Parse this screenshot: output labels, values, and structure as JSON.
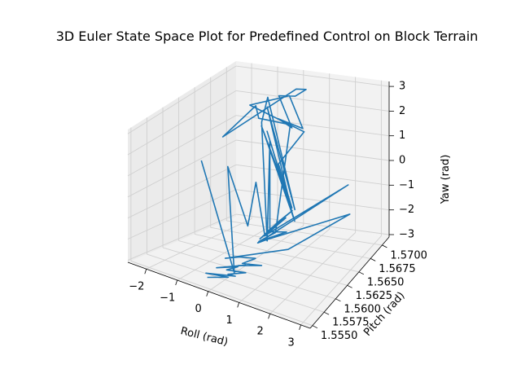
{
  "chart_data": {
    "type": "line",
    "projection": "3d",
    "title": "3D Euler State Space Plot for Predefined Control on Block Terrain",
    "xlabel": "Roll (rad)",
    "ylabel": "Pitch (rad)",
    "zlabel": "Yaw (rad)",
    "xlim": [
      -2.6,
      3.3
    ],
    "ylim": [
      1.5545,
      1.5715
    ],
    "zlim": [
      -3.1,
      3.2
    ],
    "xticks": [
      {
        "value": -2,
        "label": "−2"
      },
      {
        "value": -1,
        "label": "−1"
      },
      {
        "value": 0,
        "label": "0"
      },
      {
        "value": 1,
        "label": "1"
      },
      {
        "value": 2,
        "label": "2"
      },
      {
        "value": 3,
        "label": "3"
      }
    ],
    "yticks": [
      {
        "value": 1.555,
        "label": "1.5550"
      },
      {
        "value": 1.5575,
        "label": "1.5575"
      },
      {
        "value": 1.56,
        "label": "1.5600"
      },
      {
        "value": 1.5625,
        "label": "1.5625"
      },
      {
        "value": 1.565,
        "label": "1.5650"
      },
      {
        "value": 1.5675,
        "label": "1.5675"
      },
      {
        "value": 1.57,
        "label": "1.5700"
      }
    ],
    "zticks": [
      {
        "value": -3,
        "label": "−3"
      },
      {
        "value": -2,
        "label": "−2"
      },
      {
        "value": -1,
        "label": "−1"
      },
      {
        "value": 0,
        "label": "0"
      },
      {
        "value": 1,
        "label": "1"
      },
      {
        "value": 2,
        "label": "2"
      },
      {
        "value": 3,
        "label": "3"
      }
    ],
    "grid": true,
    "color": "#1f77b4",
    "series": [
      {
        "x": [
          -0.4,
          0.2,
          -0.5,
          0.4,
          0.1,
          0.6,
          0.0,
          0.3,
          -0.3,
          0.5,
          0.2,
          0.9,
          0.3,
          0.6,
          0.1,
          -0.2,
          1.5,
          2.8,
          0.5,
          0.3,
          0.8,
          2.6,
          0.4,
          0.9,
          0.3,
          0.6,
          1.0,
          0.4,
          0.7,
          0.2,
          0.5,
          0.6,
          -0.3,
          -1.0,
          -2.5,
          0.0,
          0.5,
          0.3,
          -0.4,
          0.6,
          0.2,
          0.8,
          0.1,
          -0.1,
          -1.6,
          0.3,
          -0.2,
          0.5,
          -0.2,
          0.8,
          0.2,
          0.5,
          -0.2,
          0.2,
          -0.6,
          -0.4,
          0.4,
          0.0,
          0.3,
          0.7,
          0.2,
          0.3,
          0.0,
          0.4,
          -0.5
        ],
        "y": [
          1.5565,
          1.557,
          1.5568,
          1.5572,
          1.5575,
          1.558,
          1.5578,
          1.5582,
          1.5576,
          1.5585,
          1.5588,
          1.5593,
          1.559,
          1.5598,
          1.5596,
          1.5586,
          1.561,
          1.566,
          1.5624,
          1.5618,
          1.5633,
          1.5668,
          1.5627,
          1.5638,
          1.5622,
          1.564,
          1.5645,
          1.563,
          1.565,
          1.5625,
          1.564,
          1.5662,
          1.565,
          1.5678,
          1.569,
          1.5702,
          1.5696,
          1.5686,
          1.569,
          1.5665,
          1.566,
          1.5675,
          1.5685,
          1.5692,
          1.5695,
          1.5702,
          1.568,
          1.567,
          1.565,
          1.566,
          1.564,
          1.5672,
          1.566,
          1.569,
          1.568,
          1.566,
          1.563,
          1.5655,
          1.564,
          1.561,
          1.562,
          1.56,
          1.558,
          1.557,
          1.556
        ],
        "z": [
          -3.0,
          -2.8,
          -2.9,
          -2.7,
          -2.8,
          -2.6,
          -2.7,
          -2.5,
          -2.7,
          -2.4,
          -2.6,
          -2.4,
          -2.5,
          -2.3,
          -2.4,
          -2.4,
          -1.8,
          -1.0,
          -2.0,
          -2.1,
          -1.6,
          0.0,
          -1.9,
          -1.2,
          -2.0,
          -1.5,
          -1.0,
          -1.8,
          -2.1,
          -2.2,
          -2.0,
          2.2,
          2.5,
          2.3,
          0.5,
          2.7,
          2.9,
          2.8,
          2.6,
          2.0,
          2.4,
          1.8,
          2.8,
          2.6,
          1.9,
          1.0,
          0.0,
          -1.5,
          2.2,
          -1.8,
          2.3,
          -1.9,
          2.8,
          -2.0,
          2.7,
          2.1,
          -2.2,
          1.5,
          -2.0,
          -1.5,
          0.5,
          -1.0,
          2.0,
          -2.5,
          2.5
        ]
      }
    ]
  }
}
